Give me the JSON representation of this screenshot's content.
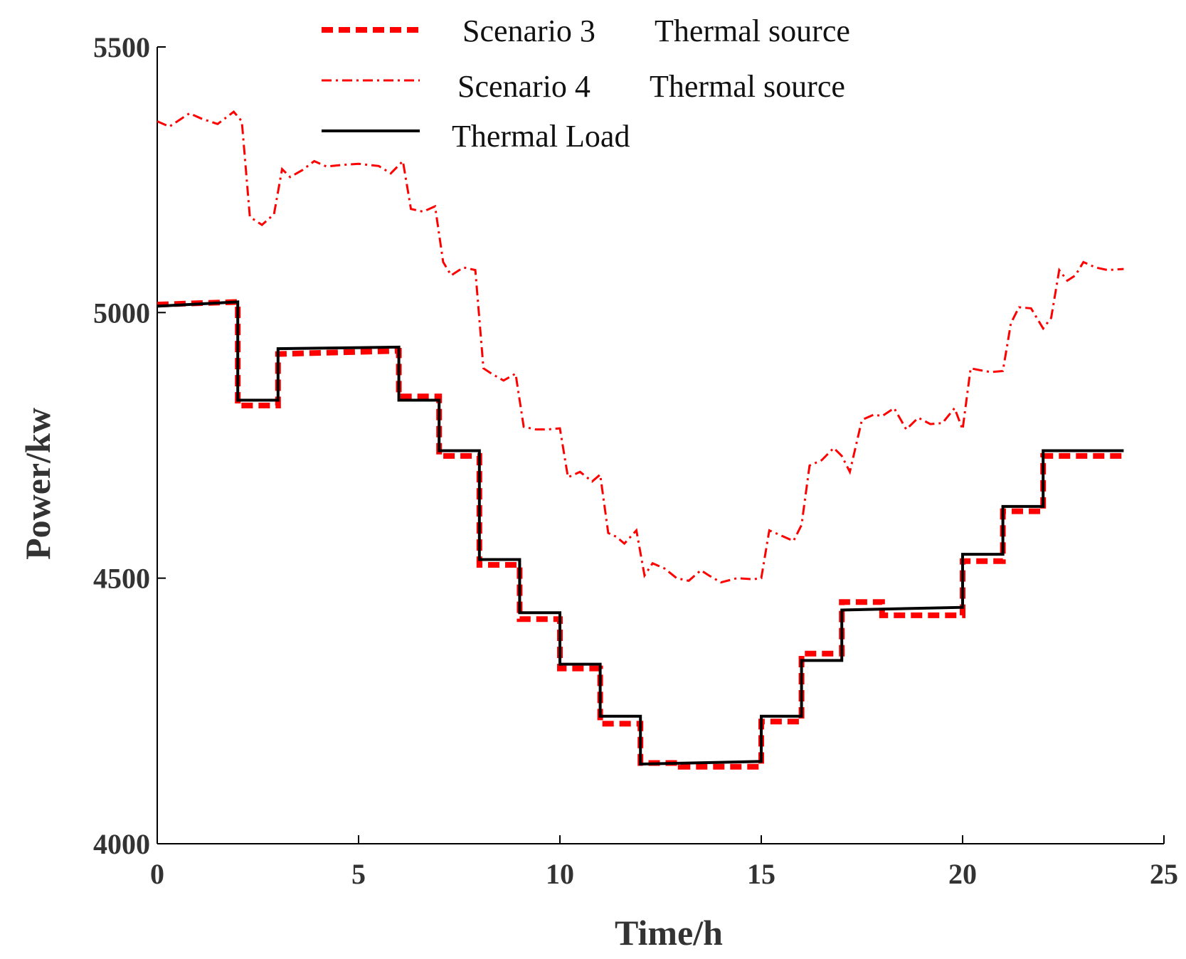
{
  "chart_data": {
    "type": "line",
    "title": "",
    "xlabel": "Time/h",
    "ylabel": "Power/kw",
    "xlim": [
      0,
      25
    ],
    "ylim": [
      4000,
      5500
    ],
    "xticks": [
      0,
      5,
      10,
      15,
      20,
      25
    ],
    "yticks": [
      4000,
      4500,
      5000,
      5500
    ],
    "xtick_labels": [
      "0",
      "5",
      "10",
      "15",
      "20",
      "25"
    ],
    "ytick_labels": [
      "4000",
      "4500",
      "5000",
      "5500"
    ],
    "grid": false,
    "legend_position": "top-center",
    "series": [
      {
        "name": "Scenario 3    Thermal source",
        "label_scenario": "Scenario 3",
        "label_source": "Thermal source",
        "color": "#ff0000",
        "style": "dashed-thick",
        "step": true,
        "x": [
          0,
          2,
          2,
          3,
          3,
          6,
          6,
          7,
          7,
          8,
          8,
          9,
          9,
          10,
          10,
          11,
          11,
          12,
          12,
          13,
          13,
          15,
          15,
          16,
          16,
          17,
          17,
          18,
          18,
          20,
          20,
          21,
          21,
          22,
          22,
          24
        ],
        "y": [
          5015,
          5020,
          4825,
          4825,
          4922,
          4928,
          4842,
          4842,
          4730,
          4730,
          4525,
          4525,
          4423,
          4423,
          4330,
          4330,
          4226,
          4226,
          4152,
          4152,
          4145,
          4145,
          4230,
          4230,
          4358,
          4358,
          4455,
          4455,
          4430,
          4430,
          4532,
          4532,
          4626,
          4626,
          4730,
          4730
        ]
      },
      {
        "name": "Scenario 4    Thermal source",
        "label_scenario": "Scenario 4",
        "label_source": "Thermal source",
        "color": "#ff0000",
        "style": "dashdot",
        "step": false,
        "x": [
          0,
          0.3,
          0.8,
          1.1,
          1.5,
          1.9,
          2.1,
          2.3,
          2.6,
          2.9,
          3.1,
          3.3,
          3.6,
          3.9,
          4.2,
          4.6,
          5.0,
          5.5,
          5.8,
          6.1,
          6.3,
          6.6,
          6.9,
          7.1,
          7.3,
          7.6,
          7.9,
          8.1,
          8.3,
          8.6,
          8.9,
          9.1,
          9.4,
          9.7,
          10.0,
          10.2,
          10.5,
          10.8,
          11.0,
          11.2,
          11.4,
          11.6,
          11.9,
          12.1,
          12.3,
          12.6,
          12.9,
          13.2,
          13.5,
          13.7,
          14.0,
          14.4,
          14.8,
          15.0,
          15.2,
          15.5,
          15.8,
          16.0,
          16.2,
          16.5,
          16.8,
          17.0,
          17.2,
          17.5,
          17.8,
          18.0,
          18.3,
          18.6,
          18.9,
          19.2,
          19.5,
          19.8,
          20.0,
          20.2,
          20.4,
          20.7,
          21.0,
          21.2,
          21.4,
          21.7,
          22.0,
          22.2,
          22.4,
          22.6,
          22.8,
          23.0,
          23.3,
          23.6,
          24.0
        ],
        "y": [
          5360,
          5350,
          5375,
          5365,
          5355,
          5378,
          5360,
          5180,
          5165,
          5185,
          5270,
          5255,
          5268,
          5285,
          5275,
          5278,
          5280,
          5276,
          5262,
          5285,
          5195,
          5190,
          5200,
          5095,
          5070,
          5085,
          5080,
          4895,
          4885,
          4872,
          4885,
          4785,
          4780,
          4780,
          4782,
          4690,
          4700,
          4682,
          4695,
          4585,
          4578,
          4565,
          4590,
          4505,
          4528,
          4518,
          4500,
          4495,
          4515,
          4505,
          4492,
          4500,
          4498,
          4500,
          4590,
          4580,
          4570,
          4600,
          4712,
          4722,
          4745,
          4730,
          4700,
          4798,
          4808,
          4805,
          4820,
          4780,
          4802,
          4790,
          4792,
          4820,
          4780,
          4895,
          4892,
          4888,
          4890,
          4980,
          5010,
          5008,
          4970,
          4990,
          5080,
          5060,
          5070,
          5095,
          5085,
          5080,
          5082
        ]
      },
      {
        "name": "Thermal Load",
        "label_scenario": "Thermal Load",
        "label_source": "",
        "color": "#000000",
        "style": "solid",
        "step": true,
        "x": [
          0,
          2,
          2,
          3,
          3,
          6,
          6,
          7,
          7,
          8,
          8,
          9,
          9,
          10,
          10,
          11,
          11,
          12,
          12,
          15,
          15,
          16,
          16,
          17,
          17,
          20,
          20,
          21,
          21,
          22,
          22,
          24
        ],
        "y": [
          5012,
          5020,
          4835,
          4835,
          4932,
          4935,
          4835,
          4835,
          4740,
          4740,
          4535,
          4535,
          4435,
          4435,
          4338,
          4338,
          4240,
          4240,
          4150,
          4155,
          4240,
          4240,
          4345,
          4345,
          4440,
          4445,
          4545,
          4545,
          4635,
          4635,
          4740,
          4740
        ]
      }
    ]
  }
}
